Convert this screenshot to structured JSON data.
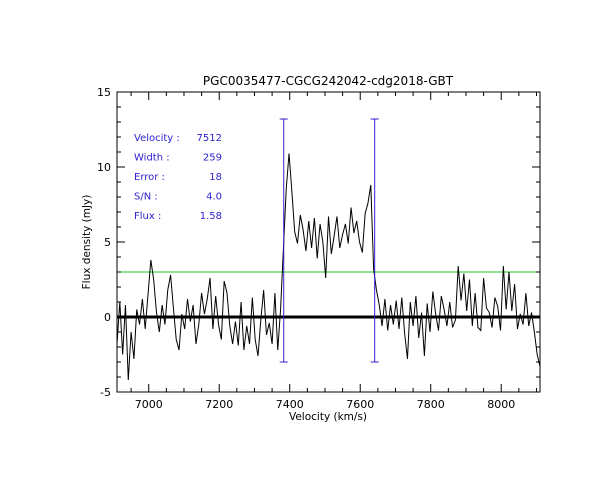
{
  "colors": {
    "spectrum": "#000000",
    "zero_line": "#000000",
    "threshold_line": "#22cc22",
    "markers": "#3322cc",
    "info_text": "#2b1fd0"
  },
  "chart_data": {
    "type": "line",
    "title": "PGC0035477-CGCG242042-cdg2018-GBT",
    "xlabel": "Velocity (km/s)",
    "ylabel": "Flux density (mJy)",
    "xlim": [
      6910,
      8110
    ],
    "ylim": [
      -5,
      15
    ],
    "x_ticks": [
      7000,
      7200,
      7400,
      7600,
      7800,
      8000
    ],
    "y_ticks": [
      -5,
      0,
      5,
      10,
      15
    ],
    "x_tick_labels": [
      "7000",
      "7200",
      "7400",
      "7600",
      "7800",
      "8000"
    ],
    "y_tick_labels": [
      "-5",
      "0",
      "5",
      "10",
      "15"
    ],
    "zero_level": 0,
    "threshold_level": 3.0,
    "marker_lines": [
      {
        "velocity": 7383,
        "y_min": -3.0,
        "y_max": 13.2
      },
      {
        "velocity": 7641,
        "y_min": -3.0,
        "y_max": 13.2
      }
    ],
    "stats": [
      {
        "label": "Velocity :",
        "value": "7512"
      },
      {
        "label": "Width :",
        "value": "259"
      },
      {
        "label": "Error :",
        "value": "18"
      },
      {
        "label": "S/N :",
        "value": "4.0"
      },
      {
        "label": "Flux :",
        "value": "1.58"
      }
    ],
    "series": [
      {
        "name": "spectrum",
        "x": [
          6910,
          6918,
          6926,
          6934,
          6942,
          6950,
          6958,
          6966,
          6974,
          6982,
          6990,
          6998,
          7006,
          7014,
          7022,
          7030,
          7038,
          7046,
          7054,
          7062,
          7070,
          7078,
          7086,
          7094,
          7102,
          7110,
          7118,
          7126,
          7134,
          7142,
          7150,
          7158,
          7166,
          7174,
          7182,
          7190,
          7198,
          7206,
          7214,
          7222,
          7230,
          7238,
          7246,
          7254,
          7262,
          7270,
          7278,
          7286,
          7294,
          7302,
          7310,
          7318,
          7326,
          7334,
          7342,
          7350,
          7358,
          7366,
          7374,
          7382,
          7390,
          7398,
          7406,
          7414,
          7422,
          7430,
          7438,
          7446,
          7454,
          7462,
          7470,
          7478,
          7486,
          7494,
          7502,
          7510,
          7518,
          7526,
          7534,
          7542,
          7550,
          7558,
          7566,
          7574,
          7582,
          7590,
          7598,
          7606,
          7614,
          7622,
          7630,
          7638,
          7646,
          7654,
          7662,
          7670,
          7678,
          7686,
          7694,
          7702,
          7710,
          7718,
          7726,
          7734,
          7742,
          7750,
          7758,
          7766,
          7774,
          7782,
          7790,
          7798,
          7806,
          7814,
          7822,
          7830,
          7838,
          7846,
          7854,
          7862,
          7870,
          7878,
          7886,
          7894,
          7902,
          7910,
          7918,
          7926,
          7934,
          7942,
          7950,
          7958,
          7966,
          7974,
          7982,
          7990,
          7998,
          8006,
          8014,
          8022,
          8030,
          8038,
          8046,
          8054,
          8062,
          8070,
          8078,
          8086,
          8094,
          8102,
          8110
        ],
        "y": [
          -1.8,
          1.0,
          -2.5,
          0.8,
          -4.2,
          -1.0,
          -2.8,
          0.5,
          -0.5,
          1.2,
          -0.8,
          1.5,
          3.8,
          2.5,
          0.3,
          -1.0,
          0.8,
          -0.5,
          1.8,
          2.8,
          0.6,
          -1.5,
          -2.2,
          0.2,
          -0.8,
          1.2,
          -0.3,
          0.8,
          -1.8,
          -0.5,
          1.6,
          0.2,
          1.2,
          2.6,
          -0.8,
          1.4,
          -0.5,
          -1.5,
          2.4,
          1.6,
          -0.6,
          -1.8,
          -0.3,
          -1.9,
          1.0,
          -2.2,
          -0.6,
          -1.8,
          1.3,
          -1.5,
          -2.6,
          -0.2,
          1.8,
          -1.2,
          -0.4,
          -1.8,
          1.6,
          -2.2,
          0.5,
          4.5,
          8.5,
          10.9,
          8.4,
          5.7,
          4.9,
          6.8,
          5.8,
          4.4,
          6.4,
          4.6,
          6.6,
          3.9,
          6.2,
          5.0,
          2.6,
          6.7,
          4.2,
          5.4,
          6.7,
          4.6,
          5.5,
          6.2,
          4.9,
          7.3,
          5.6,
          6.4,
          5.0,
          4.3,
          6.9,
          7.6,
          8.8,
          3.2,
          1.8,
          0.8,
          -0.6,
          1.2,
          -0.9,
          0.8,
          -0.5,
          1.1,
          -0.8,
          1.3,
          -1.1,
          -2.8,
          1.0,
          -0.6,
          1.4,
          -1.4,
          0.3,
          -2.6,
          0.9,
          -1.0,
          1.7,
          0.2,
          -0.9,
          1.4,
          0.5,
          -0.6,
          1.0,
          -0.7,
          -0.2,
          3.4,
          1.1,
          2.9,
          0.4,
          2.5,
          -0.6,
          1.6,
          -0.7,
          -0.9,
          2.6,
          0.6,
          0.3,
          -0.7,
          1.3,
          0.7,
          -0.9,
          3.4,
          0.5,
          3.0,
          0.4,
          2.2,
          -0.8,
          0.2,
          -0.5,
          1.6,
          -0.6,
          0.3,
          -1.0,
          -2.5,
          -3.3
        ]
      }
    ]
  }
}
